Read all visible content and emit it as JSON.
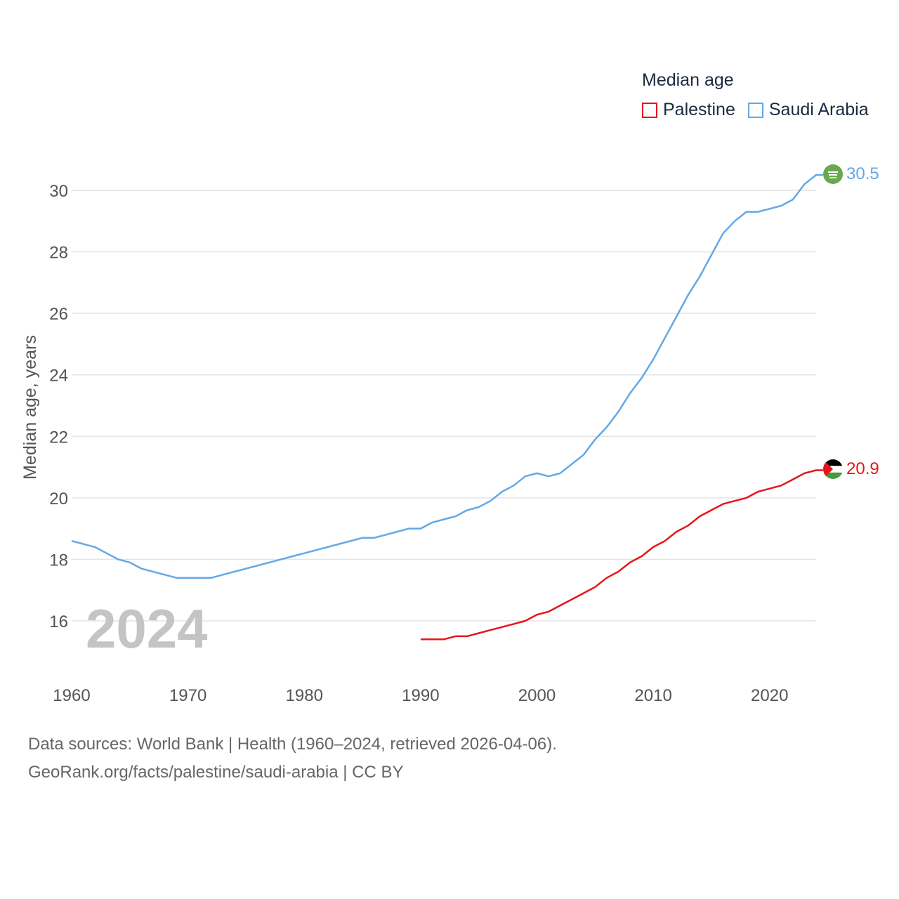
{
  "legend": {
    "title": "Median age",
    "items": [
      {
        "label": "Palestine",
        "color": "#e8141b"
      },
      {
        "label": "Saudi Arabia",
        "color": "#63a8e6"
      }
    ]
  },
  "year_label": "2024",
  "end_labels": {
    "palestine": "20.9",
    "saudi": "30.5"
  },
  "footer": {
    "line1": "Data sources: World Bank | Health (1960–2024, retrieved 2026-04-06).",
    "line2": "GeoRank.org/facts/palestine/saudi-arabia | CC BY"
  },
  "icons": {
    "palestine": "palestine-flag-icon",
    "saudi": "saudi-arabia-flag-icon"
  },
  "chart_data": {
    "type": "line",
    "title": "Median age",
    "xlabel": "",
    "ylabel": "Median age, years",
    "xlim": [
      1960,
      2024
    ],
    "ylim": [
      15,
      31
    ],
    "x_ticks": [
      1960,
      1970,
      1980,
      1990,
      2000,
      2010,
      2020
    ],
    "y_ticks": [
      16,
      18,
      20,
      22,
      24,
      26,
      28,
      30
    ],
    "grid": true,
    "legend_position": "top-right",
    "series": [
      {
        "name": "Saudi Arabia",
        "color": "#63a8e6",
        "x": [
          1960,
          1961,
          1962,
          1963,
          1964,
          1965,
          1966,
          1967,
          1968,
          1969,
          1970,
          1971,
          1972,
          1973,
          1974,
          1975,
          1976,
          1977,
          1978,
          1979,
          1980,
          1981,
          1982,
          1983,
          1984,
          1985,
          1986,
          1987,
          1988,
          1989,
          1990,
          1991,
          1992,
          1993,
          1994,
          1995,
          1996,
          1997,
          1998,
          1999,
          2000,
          2001,
          2002,
          2003,
          2004,
          2005,
          2006,
          2007,
          2008,
          2009,
          2010,
          2011,
          2012,
          2013,
          2014,
          2015,
          2016,
          2017,
          2018,
          2019,
          2020,
          2021,
          2022,
          2023,
          2024
        ],
        "values": [
          18.6,
          18.5,
          18.4,
          18.2,
          18.0,
          17.9,
          17.7,
          17.6,
          17.5,
          17.4,
          17.4,
          17.4,
          17.4,
          17.5,
          17.6,
          17.7,
          17.8,
          17.9,
          18.0,
          18.1,
          18.2,
          18.3,
          18.4,
          18.5,
          18.6,
          18.7,
          18.7,
          18.8,
          18.9,
          19.0,
          19.0,
          19.2,
          19.3,
          19.4,
          19.6,
          19.7,
          19.9,
          20.2,
          20.4,
          20.7,
          20.8,
          20.7,
          20.8,
          21.1,
          21.4,
          21.9,
          22.3,
          22.8,
          23.4,
          23.9,
          24.5,
          25.2,
          25.9,
          26.6,
          27.2,
          27.9,
          28.6,
          29.0,
          29.3,
          29.3,
          29.4,
          29.5,
          29.7,
          30.2,
          30.5
        ]
      },
      {
        "name": "Palestine",
        "color": "#e8141b",
        "x": [
          1990,
          1991,
          1992,
          1993,
          1994,
          1995,
          1996,
          1997,
          1998,
          1999,
          2000,
          2001,
          2002,
          2003,
          2004,
          2005,
          2006,
          2007,
          2008,
          2009,
          2010,
          2011,
          2012,
          2013,
          2014,
          2015,
          2016,
          2017,
          2018,
          2019,
          2020,
          2021,
          2022,
          2023,
          2024
        ],
        "values": [
          15.4,
          15.4,
          15.4,
          15.5,
          15.5,
          15.6,
          15.7,
          15.8,
          15.9,
          16.0,
          16.2,
          16.3,
          16.5,
          16.7,
          16.9,
          17.1,
          17.4,
          17.6,
          17.9,
          18.1,
          18.4,
          18.6,
          18.9,
          19.1,
          19.4,
          19.6,
          19.8,
          19.9,
          20.0,
          20.2,
          20.3,
          20.4,
          20.6,
          20.8,
          20.9
        ]
      }
    ]
  }
}
